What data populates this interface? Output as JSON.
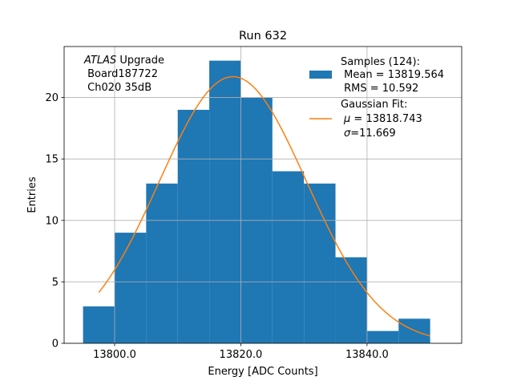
{
  "chart_data": {
    "type": "bar",
    "title": "Run 632",
    "xlabel": "Energy [ADC Counts]",
    "ylabel": "Entries",
    "xlim": [
      13792.0,
      13855.0
    ],
    "ylim": [
      0,
      24.15
    ],
    "grid": true,
    "x_ticks": [
      13800.0,
      13820.0,
      13840.0
    ],
    "x_tick_labels": [
      "13800.0",
      "13820.0",
      "13840.0"
    ],
    "y_ticks": [
      0,
      5,
      10,
      15,
      20
    ],
    "y_tick_labels": [
      "0",
      "5",
      "10",
      "15",
      "20"
    ],
    "bin_edges": [
      13795,
      13800,
      13805,
      13810,
      13815,
      13820,
      13825,
      13830,
      13835,
      13840,
      13845,
      13850
    ],
    "values": [
      3,
      9,
      13,
      19,
      23,
      20,
      14,
      13,
      7,
      1,
      2
    ],
    "fit": {
      "type": "gaussian",
      "mu": 13818.743,
      "sigma": 11.669,
      "amplitude": 21.7,
      "x_range": [
        13797.5,
        13850.0
      ]
    },
    "annotation": {
      "line1_italic": "ATLAS",
      "line1_rest": " Upgrade",
      "line2": " Board187722",
      "line3": " Ch020 35dB"
    },
    "legend": {
      "position": "top-right",
      "samples_title": "Samples (124):",
      "samples_mean": " Mean = 13819.564",
      "samples_rms": " RMS = 10.592",
      "fit_title": "Gaussian Fit:",
      "fit_mu_symbol": "μ",
      "fit_mu_text": " = 13818.743",
      "fit_sigma_symbol": "σ",
      "fit_sigma_text": "=11.669"
    },
    "colors": {
      "bars": "#1f77b4",
      "fit_line": "#ff7f0e",
      "grid": "#b0b0b0"
    }
  }
}
